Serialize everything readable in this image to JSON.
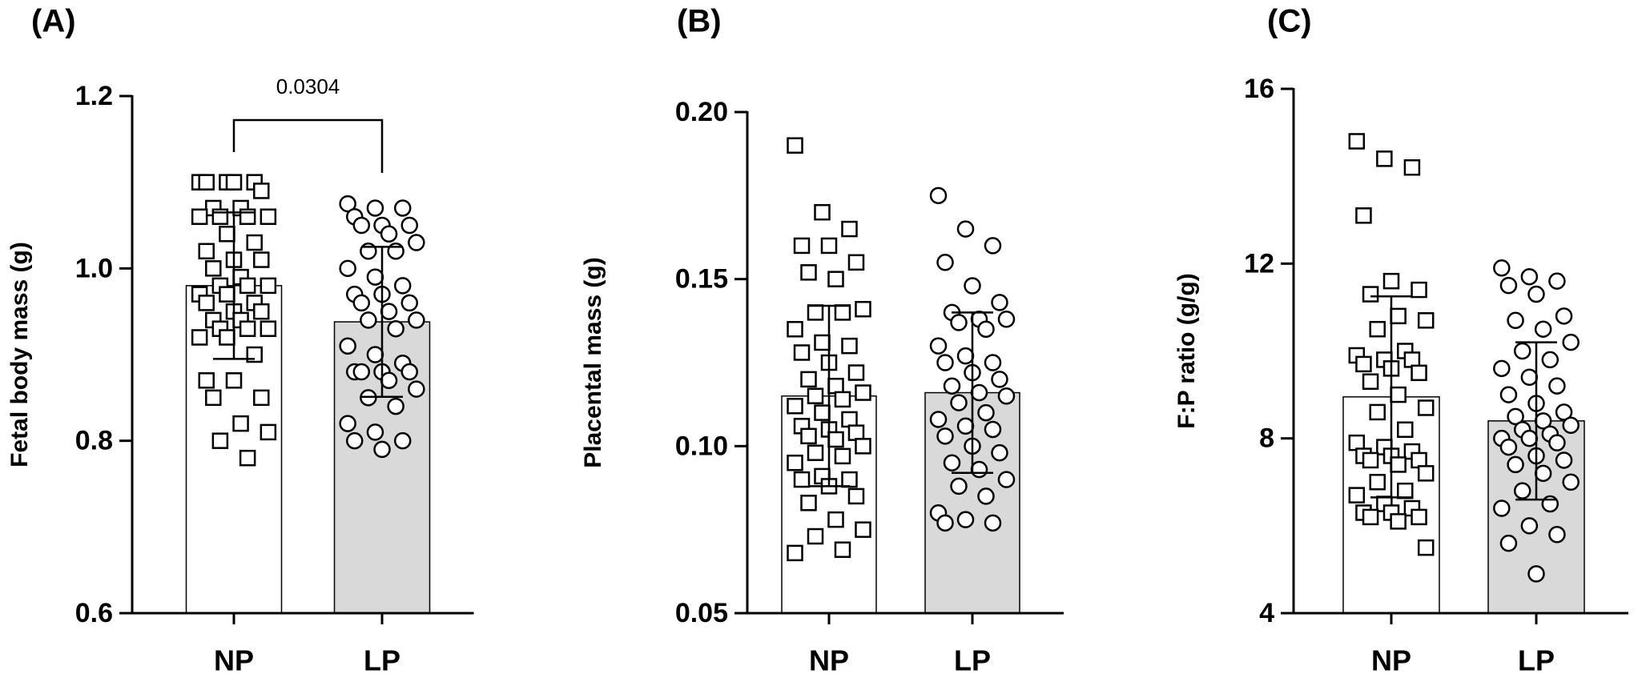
{
  "chart_data": [
    {
      "type": "bar",
      "panel": "(A)",
      "y_label": "Fetal body mass (g)",
      "annotation": "0.0304",
      "categories": [
        "NP",
        "LP"
      ],
      "values": [
        0.98,
        0.938
      ],
      "errors": [
        0.085,
        0.087
      ],
      "colors": [
        "#ffffff",
        "#d9d9d9"
      ],
      "markers": [
        "square",
        "circle"
      ],
      "points": [
        [
          1.1,
          1.1,
          1.1,
          1.1,
          1.1,
          1.09,
          1.07,
          1.07,
          1.06,
          1.06,
          1.06,
          1.06,
          1.04,
          1.03,
          1.02,
          1.01,
          1.01,
          1.0,
          0.99,
          0.98,
          0.98,
          0.98,
          0.97,
          0.97,
          0.96,
          0.96,
          0.95,
          0.95,
          0.94,
          0.94,
          0.93,
          0.93,
          0.93,
          0.92,
          0.92,
          0.9,
          0.87,
          0.87,
          0.85,
          0.85,
          0.82,
          0.81,
          0.8,
          0.78
        ],
        [
          1.075,
          1.07,
          1.07,
          1.06,
          1.05,
          1.05,
          1.05,
          1.04,
          1.03,
          1.02,
          1.02,
          1.0,
          0.99,
          0.98,
          0.97,
          0.97,
          0.96,
          0.96,
          0.95,
          0.94,
          0.94,
          0.93,
          0.91,
          0.9,
          0.89,
          0.88,
          0.88,
          0.88,
          0.88,
          0.87,
          0.86,
          0.85,
          0.84,
          0.82,
          0.81,
          0.8,
          0.8,
          0.79
        ]
      ],
      "ylim": [
        0.6,
        1.2
      ],
      "yticks": [
        0.6,
        0.8,
        {
          "value": 1.0,
          "label": "1.0"
        },
        1.2
      ]
    },
    {
      "type": "bar",
      "panel": "(B)",
      "y_label": "Placental mass (g)",
      "categories": [
        "NP",
        "LP"
      ],
      "values": [
        0.115,
        0.116
      ],
      "errors": [
        0.027,
        0.024
      ],
      "colors": [
        "#ffffff",
        "#d9d9d9"
      ],
      "markers": [
        "square",
        "circle"
      ],
      "points": [
        [
          0.19,
          0.17,
          0.165,
          0.16,
          0.16,
          0.155,
          0.152,
          0.15,
          0.141,
          0.14,
          0.14,
          0.135,
          0.131,
          0.13,
          0.128,
          0.125,
          0.122,
          0.12,
          0.118,
          0.116,
          0.115,
          0.114,
          0.112,
          0.11,
          0.108,
          0.106,
          0.105,
          0.104,
          0.103,
          0.102,
          0.1,
          0.098,
          0.097,
          0.095,
          0.091,
          0.09,
          0.09,
          0.088,
          0.085,
          0.083,
          0.078,
          0.075,
          0.073,
          0.069,
          0.068
        ],
        [
          0.175,
          0.165,
          0.16,
          0.155,
          0.148,
          0.143,
          0.14,
          0.138,
          0.138,
          0.137,
          0.135,
          0.13,
          0.127,
          0.125,
          0.125,
          0.122,
          0.12,
          0.118,
          0.116,
          0.115,
          0.113,
          0.11,
          0.108,
          0.106,
          0.105,
          0.103,
          0.1,
          0.098,
          0.095,
          0.093,
          0.09,
          0.088,
          0.085,
          0.08,
          0.078,
          0.077,
          0.077
        ]
      ],
      "ylim": [
        0.05,
        0.2
      ],
      "yticks": [
        0.05,
        {
          "value": 0.1,
          "label": "0.10"
        },
        0.15,
        {
          "value": 0.2,
          "label": "0.20"
        }
      ]
    },
    {
      "type": "bar",
      "panel": "(C)",
      "y_label": "F:P ratio (g/g)",
      "categories": [
        "NP",
        "LP"
      ],
      "values": [
        8.95,
        8.4
      ],
      "errors": [
        2.3,
        1.8
      ],
      "colors": [
        "#ffffff",
        "#d9d9d9"
      ],
      "markers": [
        "square",
        "circle"
      ],
      "points": [
        [
          14.8,
          14.4,
          14.2,
          13.1,
          11.6,
          11.4,
          11.3,
          10.8,
          10.7,
          10.5,
          10.0,
          9.9,
          9.8,
          9.8,
          9.7,
          9.6,
          9.5,
          9.3,
          9.0,
          8.7,
          8.6,
          8.2,
          7.9,
          7.8,
          7.7,
          7.6,
          7.6,
          7.5,
          7.5,
          7.4,
          7.2,
          7.0,
          6.8,
          6.7,
          6.5,
          6.4,
          6.3,
          6.3,
          6.2,
          6.2,
          6.1,
          5.5
        ],
        [
          11.9,
          11.7,
          11.6,
          11.5,
          11.3,
          10.8,
          10.7,
          10.5,
          10.2,
          10.0,
          9.8,
          9.6,
          9.4,
          9.2,
          9.0,
          8.8,
          8.6,
          8.5,
          8.4,
          8.3,
          8.2,
          8.1,
          8.0,
          8.0,
          7.9,
          7.8,
          7.6,
          7.5,
          7.4,
          7.2,
          7.0,
          6.8,
          6.5,
          6.4,
          6.0,
          5.8,
          5.6,
          4.9
        ]
      ],
      "ylim": [
        4,
        16
      ],
      "yticks": [
        4,
        8,
        12,
        16
      ]
    }
  ]
}
